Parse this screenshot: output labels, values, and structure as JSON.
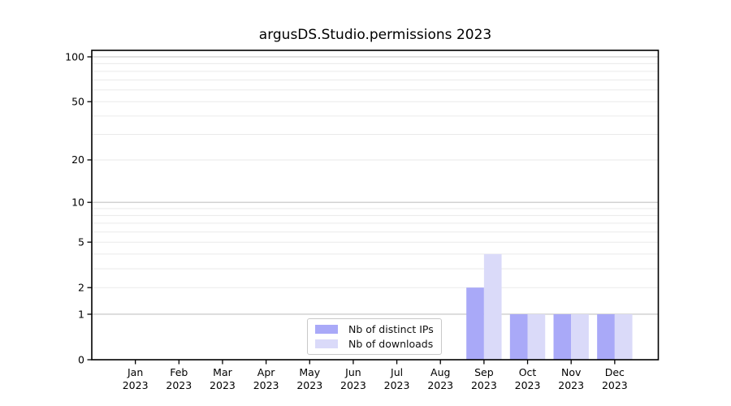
{
  "chart_data": {
    "type": "bar",
    "title": "argusDS.Studio.permissions 2023",
    "categories": [
      "Jan",
      "Feb",
      "Mar",
      "Apr",
      "May",
      "Jun",
      "Jul",
      "Aug",
      "Sep",
      "Oct",
      "Nov",
      "Dec"
    ],
    "category_year": "2023",
    "series": [
      {
        "name": "Nb of distinct IPs",
        "color": "#a9a9f8",
        "values": [
          0,
          0,
          0,
          0,
          0,
          0,
          0,
          0,
          2,
          1,
          1,
          1
        ]
      },
      {
        "name": "Nb of downloads",
        "color": "#dadaf9",
        "values": [
          0,
          0,
          0,
          0,
          0,
          0,
          0,
          0,
          4,
          1,
          1,
          1
        ]
      }
    ],
    "yscale": "log1p",
    "ylim": [
      0,
      110
    ],
    "y_tick_labels": [
      0,
      1,
      2,
      5,
      10,
      20,
      50,
      100
    ],
    "y_major_gridlines": [
      1,
      10,
      100
    ],
    "y_minor_gridlines": [
      2,
      3,
      4,
      5,
      6,
      7,
      8,
      9,
      20,
      30,
      40,
      50,
      60,
      70,
      80,
      90
    ],
    "xlabel": "",
    "ylabel": "",
    "grid": "horizontal-both",
    "legend_position": "lower-center",
    "colors": {
      "grid_major": "#c3c3c3",
      "grid_minor": "#eaeaea",
      "spine": "#000000",
      "tick_text": "#000000",
      "background": "#ffffff"
    }
  }
}
